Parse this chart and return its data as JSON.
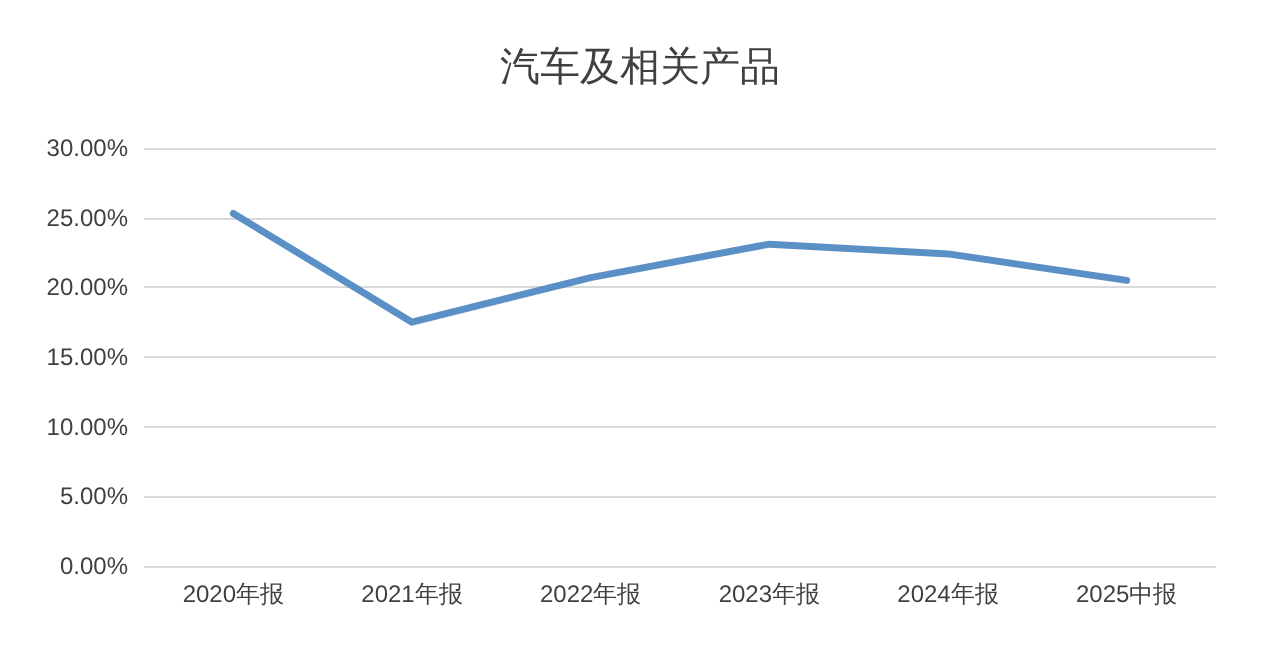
{
  "chart_data": {
    "type": "line",
    "title": "汽车及相关产品",
    "categories": [
      "2020年报",
      "2021年报",
      "2022年报",
      "2023年报",
      "2024年报",
      "2025中报"
    ],
    "series": [
      {
        "color": "#5b90c6",
        "values": [
          25.3,
          17.5,
          20.7,
          23.1,
          22.4,
          20.5
        ]
      }
    ],
    "ylim": [
      0,
      30
    ],
    "yticks": [
      {
        "value": 0,
        "label": "0.00%"
      },
      {
        "value": 5,
        "label": "5.00%"
      },
      {
        "value": 10,
        "label": "10.00%"
      },
      {
        "value": 15,
        "label": "15.00%"
      },
      {
        "value": 20,
        "label": "20.00%"
      },
      {
        "value": 25,
        "label": "25.00%"
      },
      {
        "value": 30,
        "label": "30.00%"
      }
    ],
    "grid": "y",
    "marker": "none",
    "line_style": "solid"
  }
}
